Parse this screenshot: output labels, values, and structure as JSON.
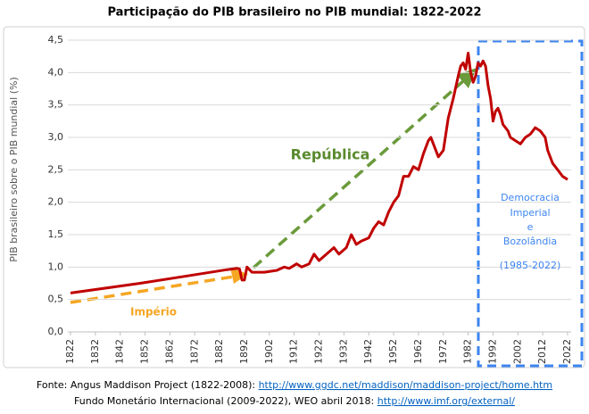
{
  "chart_data": {
    "type": "line",
    "title": "Participação do PIB brasileiro no PIB mundial: 1822-2022",
    "y_label": "PIB brasileiro sobre o PIB mundial (%)",
    "color": "#c00000",
    "xlim": [
      1822,
      2022
    ],
    "xticks": [
      1822,
      1832,
      1842,
      1852,
      1862,
      1872,
      1882,
      1892,
      1902,
      1912,
      1922,
      1932,
      1942,
      1952,
      1962,
      1972,
      1982,
      1992,
      2002,
      2012,
      2022
    ],
    "ylim": [
      0,
      4.5
    ],
    "yticks": [
      {
        "value": 0,
        "label": "0,0"
      },
      {
        "value": 0.5,
        "label": "0,5"
      },
      {
        "value": 1,
        "label": "1,0"
      },
      {
        "value": 1.5,
        "label": "1,5"
      },
      {
        "value": 2,
        "label": "2,0"
      },
      {
        "value": 2.5,
        "label": "2,5"
      },
      {
        "value": 3,
        "label": "3,0"
      },
      {
        "value": 3.5,
        "label": "3,5"
      },
      {
        "value": 4,
        "label": "4,0"
      },
      {
        "value": 4.5,
        "label": "4,5"
      }
    ],
    "x": [
      1822,
      1850,
      1870,
      1885,
      1889,
      1890,
      1891,
      1892,
      1893,
      1895,
      1900,
      1905,
      1908,
      1910,
      1913,
      1915,
      1918,
      1920,
      1922,
      1925,
      1928,
      1930,
      1933,
      1935,
      1937,
      1939,
      1942,
      1944,
      1946,
      1948,
      1950,
      1952,
      1954,
      1956,
      1958,
      1960,
      1962,
      1964,
      1966,
      1967,
      1968,
      1970,
      1972,
      1974,
      1976,
      1978,
      1979,
      1980,
      1981,
      1982,
      1983,
      1984,
      1985,
      1986,
      1987,
      1988,
      1989,
      1990,
      1991,
      1992,
      1993,
      1994,
      1995,
      1996,
      1998,
      1999,
      2001,
      2003,
      2005,
      2007,
      2009,
      2011,
      2013,
      2014,
      2016,
      2018,
      2020,
      2022
    ],
    "values": [
      0.6,
      0.75,
      0.87,
      0.96,
      0.98,
      0.97,
      0.8,
      0.8,
      1.0,
      0.92,
      0.92,
      0.95,
      1.0,
      0.98,
      1.05,
      1.0,
      1.05,
      1.2,
      1.1,
      1.2,
      1.3,
      1.2,
      1.3,
      1.5,
      1.35,
      1.4,
      1.45,
      1.6,
      1.7,
      1.65,
      1.85,
      2.0,
      2.1,
      2.4,
      2.4,
      2.55,
      2.5,
      2.75,
      2.95,
      3.0,
      2.9,
      2.7,
      2.8,
      3.3,
      3.6,
      3.95,
      4.1,
      4.15,
      4.05,
      4.3,
      4.0,
      3.85,
      3.95,
      4.15,
      4.1,
      4.18,
      4.1,
      3.8,
      3.6,
      3.25,
      3.4,
      3.45,
      3.35,
      3.2,
      3.1,
      3.0,
      2.95,
      2.9,
      3.0,
      3.05,
      3.15,
      3.1,
      3.0,
      2.8,
      2.6,
      2.5,
      2.4,
      2.35
    ],
    "annotations": {
      "republica": "República",
      "imperio": "Império",
      "democracia": [
        "Democracia",
        "Imperial",
        "e",
        "Bozolândia",
        "(1985-2022)"
      ]
    }
  },
  "source": {
    "line1_text": "Fonte: Angus Maddison Project (1822-2008): ",
    "line1_link": "http://www.ggdc.net/maddison/maddison-project/home.htm",
    "line2_text": "Fundo Monetário Internacional (2009-2022), WEO abril 2018: ",
    "line2_link": "http://www.imf.org/external/"
  }
}
